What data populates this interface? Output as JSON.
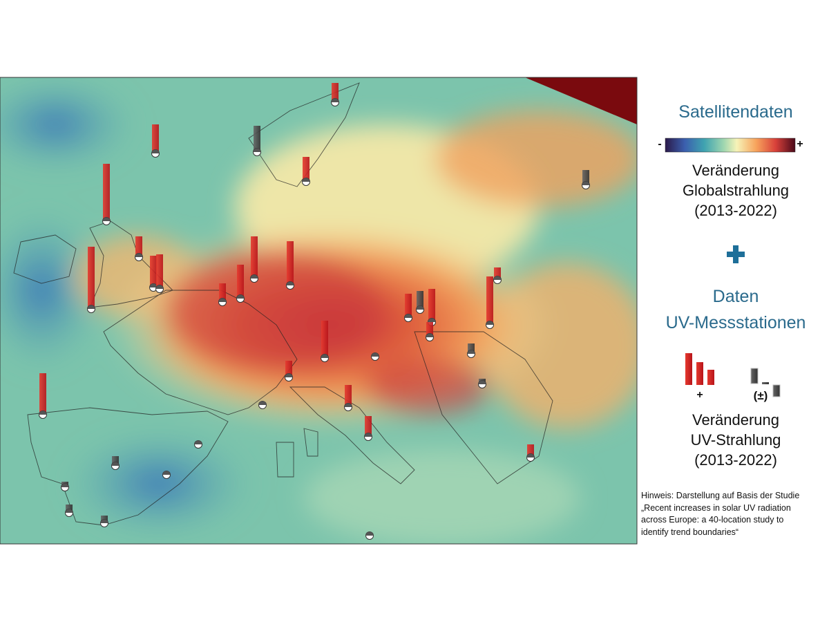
{
  "legend": {
    "satellite_title": "Satellitendaten",
    "scale_min": "-",
    "scale_max": "+",
    "satellite_caption": [
      "Veränderung",
      "Globalstrahlung",
      "(2013-2022)"
    ],
    "stations_title": [
      "Daten",
      "UV-Messstationen"
    ],
    "positive_label": "+",
    "neutral_label": "(±)",
    "stations_caption": [
      "Veränderung",
      "UV-Strahlung",
      "(2013-2022)"
    ]
  },
  "note": [
    "Hinweis: Darstellung auf Basis der Studie",
    "„Recent increases in solar UV radiation",
    "across Europe:  a 40-location study to",
    "identify trend boundaries“"
  ]
}
